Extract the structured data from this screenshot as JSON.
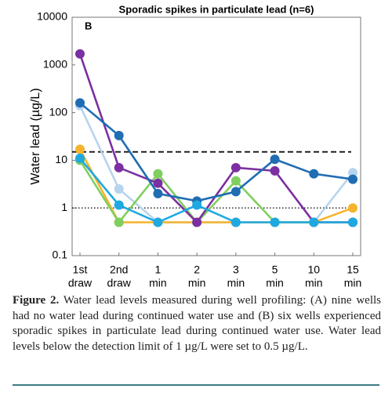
{
  "chart_data": {
    "type": "line",
    "title": "Sporadic spikes in particulate lead (n=6)",
    "panel_label": "B",
    "y_label": "Water lead (µg/L)",
    "log_y": true,
    "categories": [
      [
        "1st",
        "draw"
      ],
      [
        "2nd",
        "draw"
      ],
      [
        "1",
        "min"
      ],
      [
        "2",
        "min"
      ],
      [
        "3",
        "min"
      ],
      [
        "5",
        "min"
      ],
      [
        "10",
        "min"
      ],
      [
        "15",
        "min"
      ]
    ],
    "ylim": [
      0.1,
      10000
    ],
    "yticks": [
      0.1,
      1,
      10,
      100,
      1000,
      10000
    ],
    "reference_lines": [
      {
        "value": 15,
        "style": "dashed"
      },
      {
        "value": 1,
        "style": "dotted"
      }
    ],
    "series": [
      {
        "color": "#b7d4ee",
        "values": [
          140,
          2.5,
          0.5,
          0.5,
          0.5,
          0.5,
          0.5,
          5.5
        ]
      },
      {
        "color": "#f6b32b",
        "values": [
          17,
          0.5,
          0.5,
          0.5,
          0.5,
          0.5,
          0.5,
          1
        ]
      },
      {
        "color": "#7fcf5f",
        "values": [
          10,
          0.5,
          5.2,
          0.5,
          3.7,
          0.5,
          0.5,
          0.5
        ]
      },
      {
        "color": "#7b2fa2",
        "values": [
          1700,
          7,
          3.3,
          0.5,
          7,
          6,
          0.5,
          0.5
        ]
      },
      {
        "color": "#1f6db3",
        "values": [
          160,
          33,
          2,
          1.4,
          2.2,
          10.5,
          5.2,
          4
        ]
      },
      {
        "color": "#1ea9e1",
        "values": [
          11,
          1.15,
          0.5,
          1.15,
          0.5,
          0.5,
          0.5,
          0.5
        ]
      }
    ]
  },
  "caption": {
    "label": "Figure 2.",
    "text": "Water lead levels measured during well profiling: (A) nine wells had no water lead during continued water use and (B) six wells experienced sporadic spikes in particulate lead during continued water use. Water lead levels below the detection limit of 1 µg/L were set to 0.5 µg/L."
  }
}
